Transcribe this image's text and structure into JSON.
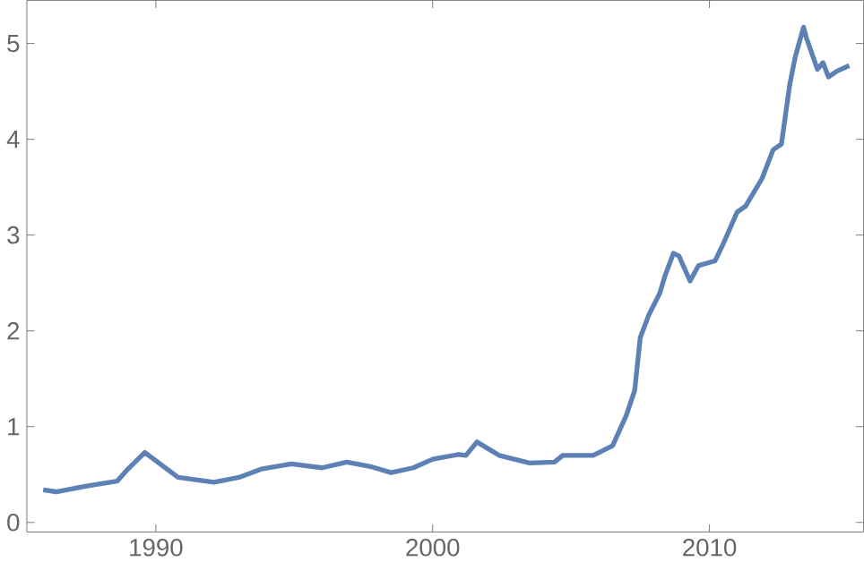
{
  "chart_data": {
    "type": "line",
    "x": [
      1985.93,
      1986.4,
      1987.5,
      1988.6,
      1989.0,
      1989.6,
      1990.8,
      1992.1,
      1993.0,
      1993.85,
      1994.9,
      1996.0,
      1996.9,
      1997.8,
      1998.5,
      1999.3,
      2000.0,
      2000.95,
      2001.2,
      2001.6,
      2002.4,
      2003.5,
      2004.4,
      2004.7,
      2005.8,
      2006.5,
      2007.0,
      2007.3,
      2007.5,
      2007.8,
      2008.2,
      2008.4,
      2008.7,
      2008.9,
      2009.3,
      2009.6,
      2010.2,
      2010.5,
      2011.0,
      2011.3,
      2011.9,
      2012.3,
      2012.6,
      2012.9,
      2013.1,
      2013.4,
      2013.5,
      2013.9,
      2014.1,
      2014.3,
      2014.6,
      2015.05
    ],
    "series": [
      {
        "color": "#5e81b5",
        "values": [
          0.34,
          0.32,
          0.38,
          0.43,
          0.56,
          0.73,
          0.47,
          0.42,
          0.47,
          0.56,
          0.61,
          0.57,
          0.63,
          0.58,
          0.52,
          0.57,
          0.66,
          0.71,
          0.7,
          0.84,
          0.7,
          0.62,
          0.63,
          0.7,
          0.7,
          0.8,
          1.12,
          1.38,
          1.93,
          2.16,
          2.39,
          2.58,
          2.81,
          2.78,
          2.52,
          2.68,
          2.73,
          2.91,
          3.24,
          3.3,
          3.59,
          3.89,
          3.95,
          4.57,
          4.86,
          5.17,
          5.06,
          4.73,
          4.8,
          4.65,
          4.71,
          4.77
        ]
      }
    ],
    "xlim": [
      1985.34,
      2015.57
    ],
    "ylim": [
      -0.1,
      5.45
    ],
    "xticks": [
      1990,
      2000,
      2010
    ],
    "yticks": [
      0,
      1,
      2,
      3,
      4,
      5
    ],
    "grid": false,
    "marker": "none",
    "line_style": "solid"
  }
}
